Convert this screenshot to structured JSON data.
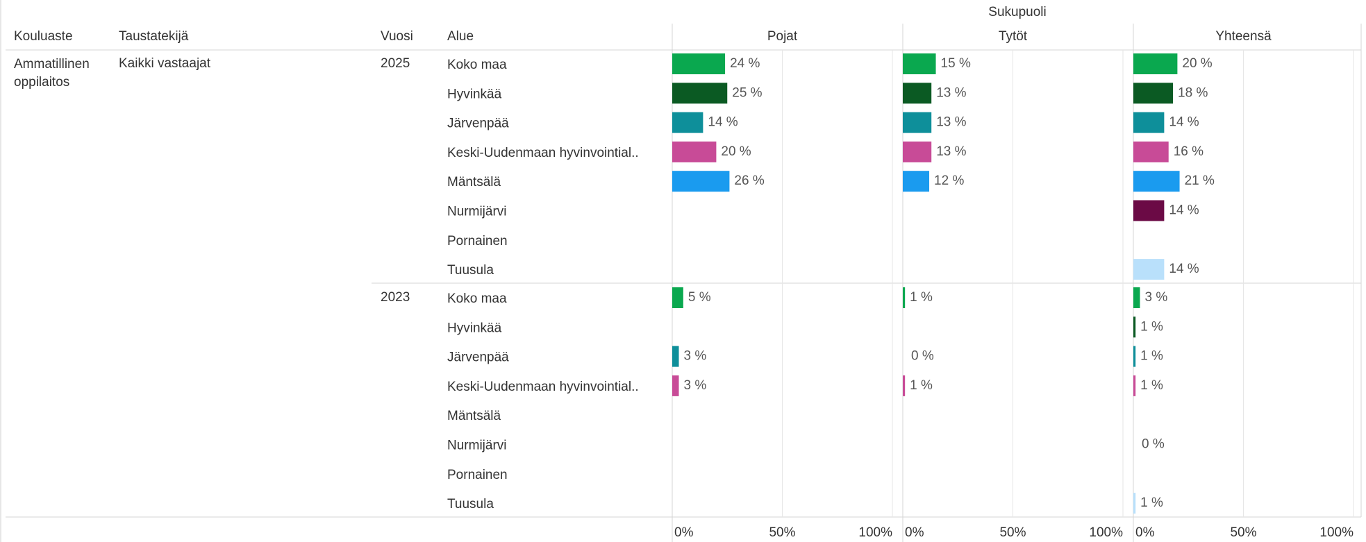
{
  "chart_data": {
    "type": "bar",
    "title": "Sukupuoli",
    "row_headers": [
      "Kouluaste",
      "Taustatekijä",
      "Vuosi",
      "Alue"
    ],
    "kouluaste": "Ammatillinen oppilaitos",
    "taustatekija": "Kaikki vastaajat",
    "panels": [
      "Pojat",
      "Tytöt",
      "Yhteensä"
    ],
    "categories": [
      "Koko maa",
      "Hyvinkää",
      "Järvenpää",
      "Keski-Uudenmaan hyvinvointial..",
      "Mäntsälä",
      "Nurmijärvi",
      "Pornainen",
      "Tuusula"
    ],
    "colors": [
      "#0aa84f",
      "#0b5a23",
      "#0e8f9a",
      "#c84b97",
      "#1a9bef",
      "#6b0a45",
      null,
      "#b9e0fb"
    ],
    "groups": [
      {
        "year": "2025",
        "values": [
          [
            24,
            25,
            14,
            20,
            26,
            null,
            null,
            null
          ],
          [
            15,
            13,
            13,
            13,
            12,
            null,
            null,
            null
          ],
          [
            20,
            18,
            14,
            16,
            21,
            14,
            null,
            14
          ]
        ],
        "value_labels": [
          [
            "24 %",
            "25 %",
            "14 %",
            "20 %",
            "26 %",
            null,
            null,
            null
          ],
          [
            "15 %",
            "13 %",
            "13 %",
            "13 %",
            "12 %",
            null,
            null,
            null
          ],
          [
            "20 %",
            "18 %",
            "14 %",
            "16 %",
            "21 %",
            "14 %",
            null,
            "14 %"
          ]
        ]
      },
      {
        "year": "2023",
        "values": [
          [
            5,
            null,
            3,
            3,
            null,
            null,
            null,
            null
          ],
          [
            1,
            null,
            0,
            1,
            null,
            null,
            null,
            null
          ],
          [
            3,
            1,
            1,
            1,
            null,
            0,
            null,
            1
          ]
        ],
        "value_labels": [
          [
            "5 %",
            null,
            "3 %",
            "3 %",
            null,
            null,
            null,
            null
          ],
          [
            "1 %",
            null,
            "0 %",
            "1 %",
            null,
            null,
            null,
            null
          ],
          [
            "3 %",
            "1 %",
            "1 %",
            "1 %",
            null,
            "0 %",
            null,
            "1 %"
          ]
        ]
      }
    ],
    "xlim": [
      0,
      100
    ],
    "xticks": [
      {
        "value": 0,
        "label": "0%"
      },
      {
        "value": 50,
        "label": "50%"
      },
      {
        "value": 100,
        "label": "100%"
      }
    ],
    "grid": true
  }
}
